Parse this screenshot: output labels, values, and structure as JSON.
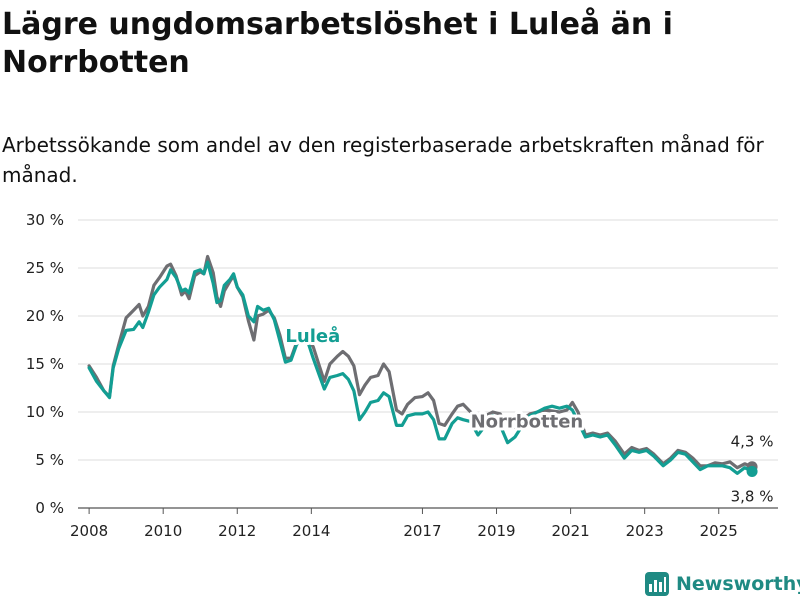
{
  "title": "Lägre ungdomsarbetslöshet i Luleå än i Norrbotten",
  "subtitle": "Arbetssökande som andel av den registerbaserade arbetskraften månad för månad.",
  "logo": {
    "text": "Newsworthy",
    "icon": "bar-chart-badge-icon"
  },
  "colors": {
    "lulea": "#139e93",
    "norrbotten": "#6e6e72",
    "grid": "#dcdcdc"
  },
  "chart_data": {
    "type": "line",
    "title": "Lägre ungdomsarbetslöshet i Luleå än i Norrbotten",
    "xlabel": "",
    "ylabel": "",
    "ylim": [
      0,
      30
    ],
    "xlim": [
      2007.7,
      2026.6
    ],
    "grid": true,
    "y_ticks": [
      0,
      5,
      10,
      15,
      20,
      25,
      30
    ],
    "y_tick_labels": [
      "0 %",
      "5 %",
      "10 %",
      "15 %",
      "20 %",
      "25 %",
      "30 %"
    ],
    "x_ticks": [
      2008,
      2010,
      2012,
      2014,
      2017,
      2019,
      2021,
      2023,
      2025
    ],
    "x_tick_labels": [
      "2008",
      "2010",
      "2012",
      "2014",
      "2017",
      "2019",
      "2021",
      "2023",
      "2025"
    ],
    "series": [
      {
        "name": "Norrbotten",
        "label": "Norrbotten",
        "end_value_label": "4,3 %",
        "points": [
          [
            2008.0,
            14.8
          ],
          [
            2008.2,
            13.6
          ],
          [
            2008.4,
            12.2
          ],
          [
            2008.55,
            11.6
          ],
          [
            2008.65,
            14.8
          ],
          [
            2008.8,
            17.0
          ],
          [
            2009.0,
            19.8
          ],
          [
            2009.2,
            20.6
          ],
          [
            2009.35,
            21.2
          ],
          [
            2009.45,
            20.0
          ],
          [
            2009.6,
            21.0
          ],
          [
            2009.75,
            23.2
          ],
          [
            2009.9,
            24.0
          ],
          [
            2010.1,
            25.2
          ],
          [
            2010.2,
            25.4
          ],
          [
            2010.35,
            24.2
          ],
          [
            2010.5,
            22.2
          ],
          [
            2010.6,
            22.6
          ],
          [
            2010.7,
            21.8
          ],
          [
            2010.85,
            24.2
          ],
          [
            2011.0,
            24.6
          ],
          [
            2011.1,
            24.4
          ],
          [
            2011.2,
            26.2
          ],
          [
            2011.35,
            24.5
          ],
          [
            2011.45,
            22.0
          ],
          [
            2011.55,
            21.0
          ],
          [
            2011.65,
            22.6
          ],
          [
            2011.8,
            23.6
          ],
          [
            2011.9,
            24.2
          ],
          [
            2012.0,
            23.0
          ],
          [
            2012.15,
            22.0
          ],
          [
            2012.3,
            19.5
          ],
          [
            2012.45,
            17.5
          ],
          [
            2012.55,
            20.0
          ],
          [
            2012.7,
            20.2
          ],
          [
            2012.85,
            20.6
          ],
          [
            2013.0,
            19.8
          ],
          [
            2013.15,
            18.0
          ],
          [
            2013.3,
            15.6
          ],
          [
            2013.45,
            15.6
          ],
          [
            2013.6,
            17.2
          ],
          [
            2013.75,
            17.8
          ],
          [
            2013.9,
            17.6
          ],
          [
            2014.05,
            16.8
          ],
          [
            2014.2,
            15.0
          ],
          [
            2014.35,
            13.2
          ],
          [
            2014.5,
            15.0
          ],
          [
            2014.7,
            15.8
          ],
          [
            2014.85,
            16.3
          ],
          [
            2015.0,
            15.8
          ],
          [
            2015.15,
            14.8
          ],
          [
            2015.3,
            11.8
          ],
          [
            2015.45,
            12.8
          ],
          [
            2015.6,
            13.6
          ],
          [
            2015.8,
            13.8
          ],
          [
            2015.95,
            15.0
          ],
          [
            2016.1,
            14.2
          ],
          [
            2016.3,
            10.2
          ],
          [
            2016.45,
            9.8
          ],
          [
            2016.6,
            10.8
          ],
          [
            2016.8,
            11.5
          ],
          [
            2017.0,
            11.6
          ],
          [
            2017.15,
            12.0
          ],
          [
            2017.3,
            11.2
          ],
          [
            2017.45,
            8.8
          ],
          [
            2017.6,
            8.6
          ],
          [
            2017.8,
            9.8
          ],
          [
            2017.95,
            10.6
          ],
          [
            2018.1,
            10.8
          ],
          [
            2018.3,
            10.0
          ],
          [
            2018.5,
            9.2
          ],
          [
            2018.7,
            9.6
          ],
          [
            2018.9,
            10.0
          ],
          [
            2019.1,
            9.8
          ],
          [
            2019.3,
            8.4
          ],
          [
            2019.5,
            8.4
          ],
          [
            2019.7,
            9.2
          ],
          [
            2019.9,
            9.8
          ],
          [
            2020.1,
            10.0
          ],
          [
            2020.3,
            10.2
          ],
          [
            2020.5,
            10.1
          ],
          [
            2020.7,
            10.0
          ],
          [
            2020.9,
            10.2
          ],
          [
            2021.05,
            11.0
          ],
          [
            2021.2,
            10.0
          ],
          [
            2021.4,
            7.6
          ],
          [
            2021.6,
            7.8
          ],
          [
            2021.8,
            7.6
          ],
          [
            2022.0,
            7.8
          ],
          [
            2022.2,
            7.0
          ],
          [
            2022.45,
            5.6
          ],
          [
            2022.65,
            6.3
          ],
          [
            2022.85,
            6.0
          ],
          [
            2023.05,
            6.2
          ],
          [
            2023.25,
            5.6
          ],
          [
            2023.5,
            4.6
          ],
          [
            2023.7,
            5.2
          ],
          [
            2023.9,
            6.0
          ],
          [
            2024.1,
            5.8
          ],
          [
            2024.3,
            5.2
          ],
          [
            2024.5,
            4.4
          ],
          [
            2024.7,
            4.4
          ],
          [
            2024.9,
            4.7
          ],
          [
            2025.1,
            4.6
          ],
          [
            2025.3,
            4.8
          ],
          [
            2025.5,
            4.2
          ],
          [
            2025.7,
            4.6
          ],
          [
            2025.9,
            4.3
          ]
        ]
      },
      {
        "name": "Luleå",
        "label": "Luleå",
        "end_value_label": "3,8 %",
        "points": [
          [
            2008.0,
            14.6
          ],
          [
            2008.2,
            13.2
          ],
          [
            2008.4,
            12.2
          ],
          [
            2008.55,
            11.5
          ],
          [
            2008.65,
            14.6
          ],
          [
            2008.8,
            16.6
          ],
          [
            2009.0,
            18.5
          ],
          [
            2009.2,
            18.6
          ],
          [
            2009.35,
            19.4
          ],
          [
            2009.45,
            18.8
          ],
          [
            2009.6,
            20.4
          ],
          [
            2009.75,
            22.2
          ],
          [
            2009.9,
            23.0
          ],
          [
            2010.1,
            23.8
          ],
          [
            2010.2,
            24.8
          ],
          [
            2010.35,
            24.0
          ],
          [
            2010.5,
            22.6
          ],
          [
            2010.6,
            22.8
          ],
          [
            2010.7,
            22.4
          ],
          [
            2010.85,
            24.6
          ],
          [
            2011.0,
            24.8
          ],
          [
            2011.1,
            24.4
          ],
          [
            2011.2,
            25.6
          ],
          [
            2011.35,
            23.4
          ],
          [
            2011.45,
            21.4
          ],
          [
            2011.55,
            21.6
          ],
          [
            2011.65,
            23.2
          ],
          [
            2011.8,
            23.8
          ],
          [
            2011.9,
            24.4
          ],
          [
            2012.0,
            23.0
          ],
          [
            2012.15,
            22.2
          ],
          [
            2012.3,
            20.0
          ],
          [
            2012.45,
            19.4
          ],
          [
            2012.55,
            21.0
          ],
          [
            2012.7,
            20.6
          ],
          [
            2012.85,
            20.8
          ],
          [
            2013.0,
            19.6
          ],
          [
            2013.15,
            17.4
          ],
          [
            2013.3,
            15.2
          ],
          [
            2013.45,
            15.4
          ],
          [
            2013.6,
            17.0
          ],
          [
            2013.75,
            17.6
          ],
          [
            2013.9,
            17.4
          ],
          [
            2014.05,
            15.6
          ],
          [
            2014.2,
            14.0
          ],
          [
            2014.35,
            12.4
          ],
          [
            2014.5,
            13.6
          ],
          [
            2014.7,
            13.8
          ],
          [
            2014.85,
            14.0
          ],
          [
            2015.0,
            13.4
          ],
          [
            2015.15,
            12.2
          ],
          [
            2015.3,
            9.2
          ],
          [
            2015.45,
            10.0
          ],
          [
            2015.6,
            11.0
          ],
          [
            2015.8,
            11.2
          ],
          [
            2015.95,
            12.0
          ],
          [
            2016.1,
            11.6
          ],
          [
            2016.3,
            8.6
          ],
          [
            2016.45,
            8.6
          ],
          [
            2016.6,
            9.6
          ],
          [
            2016.8,
            9.8
          ],
          [
            2017.0,
            9.8
          ],
          [
            2017.15,
            10.0
          ],
          [
            2017.3,
            9.2
          ],
          [
            2017.45,
            7.2
          ],
          [
            2017.6,
            7.2
          ],
          [
            2017.8,
            8.8
          ],
          [
            2017.95,
            9.4
          ],
          [
            2018.1,
            9.2
          ],
          [
            2018.3,
            9.0
          ],
          [
            2018.5,
            7.6
          ],
          [
            2018.7,
            8.6
          ],
          [
            2018.9,
            9.6
          ],
          [
            2019.1,
            8.6
          ],
          [
            2019.3,
            6.8
          ],
          [
            2019.5,
            7.4
          ],
          [
            2019.7,
            8.6
          ],
          [
            2019.9,
            9.6
          ],
          [
            2020.1,
            10.0
          ],
          [
            2020.3,
            10.4
          ],
          [
            2020.5,
            10.6
          ],
          [
            2020.7,
            10.4
          ],
          [
            2020.9,
            10.6
          ],
          [
            2021.05,
            10.2
          ],
          [
            2021.2,
            9.0
          ],
          [
            2021.4,
            7.4
          ],
          [
            2021.6,
            7.6
          ],
          [
            2021.8,
            7.4
          ],
          [
            2022.0,
            7.6
          ],
          [
            2022.2,
            6.6
          ],
          [
            2022.45,
            5.2
          ],
          [
            2022.65,
            6.0
          ],
          [
            2022.85,
            5.8
          ],
          [
            2023.05,
            6.0
          ],
          [
            2023.25,
            5.4
          ],
          [
            2023.5,
            4.4
          ],
          [
            2023.7,
            5.0
          ],
          [
            2023.9,
            5.8
          ],
          [
            2024.1,
            5.6
          ],
          [
            2024.3,
            4.8
          ],
          [
            2024.5,
            4.0
          ],
          [
            2024.7,
            4.4
          ],
          [
            2024.9,
            4.4
          ],
          [
            2025.1,
            4.4
          ],
          [
            2025.3,
            4.2
          ],
          [
            2025.5,
            3.6
          ],
          [
            2025.7,
            4.2
          ],
          [
            2025.9,
            3.8
          ]
        ]
      }
    ]
  }
}
